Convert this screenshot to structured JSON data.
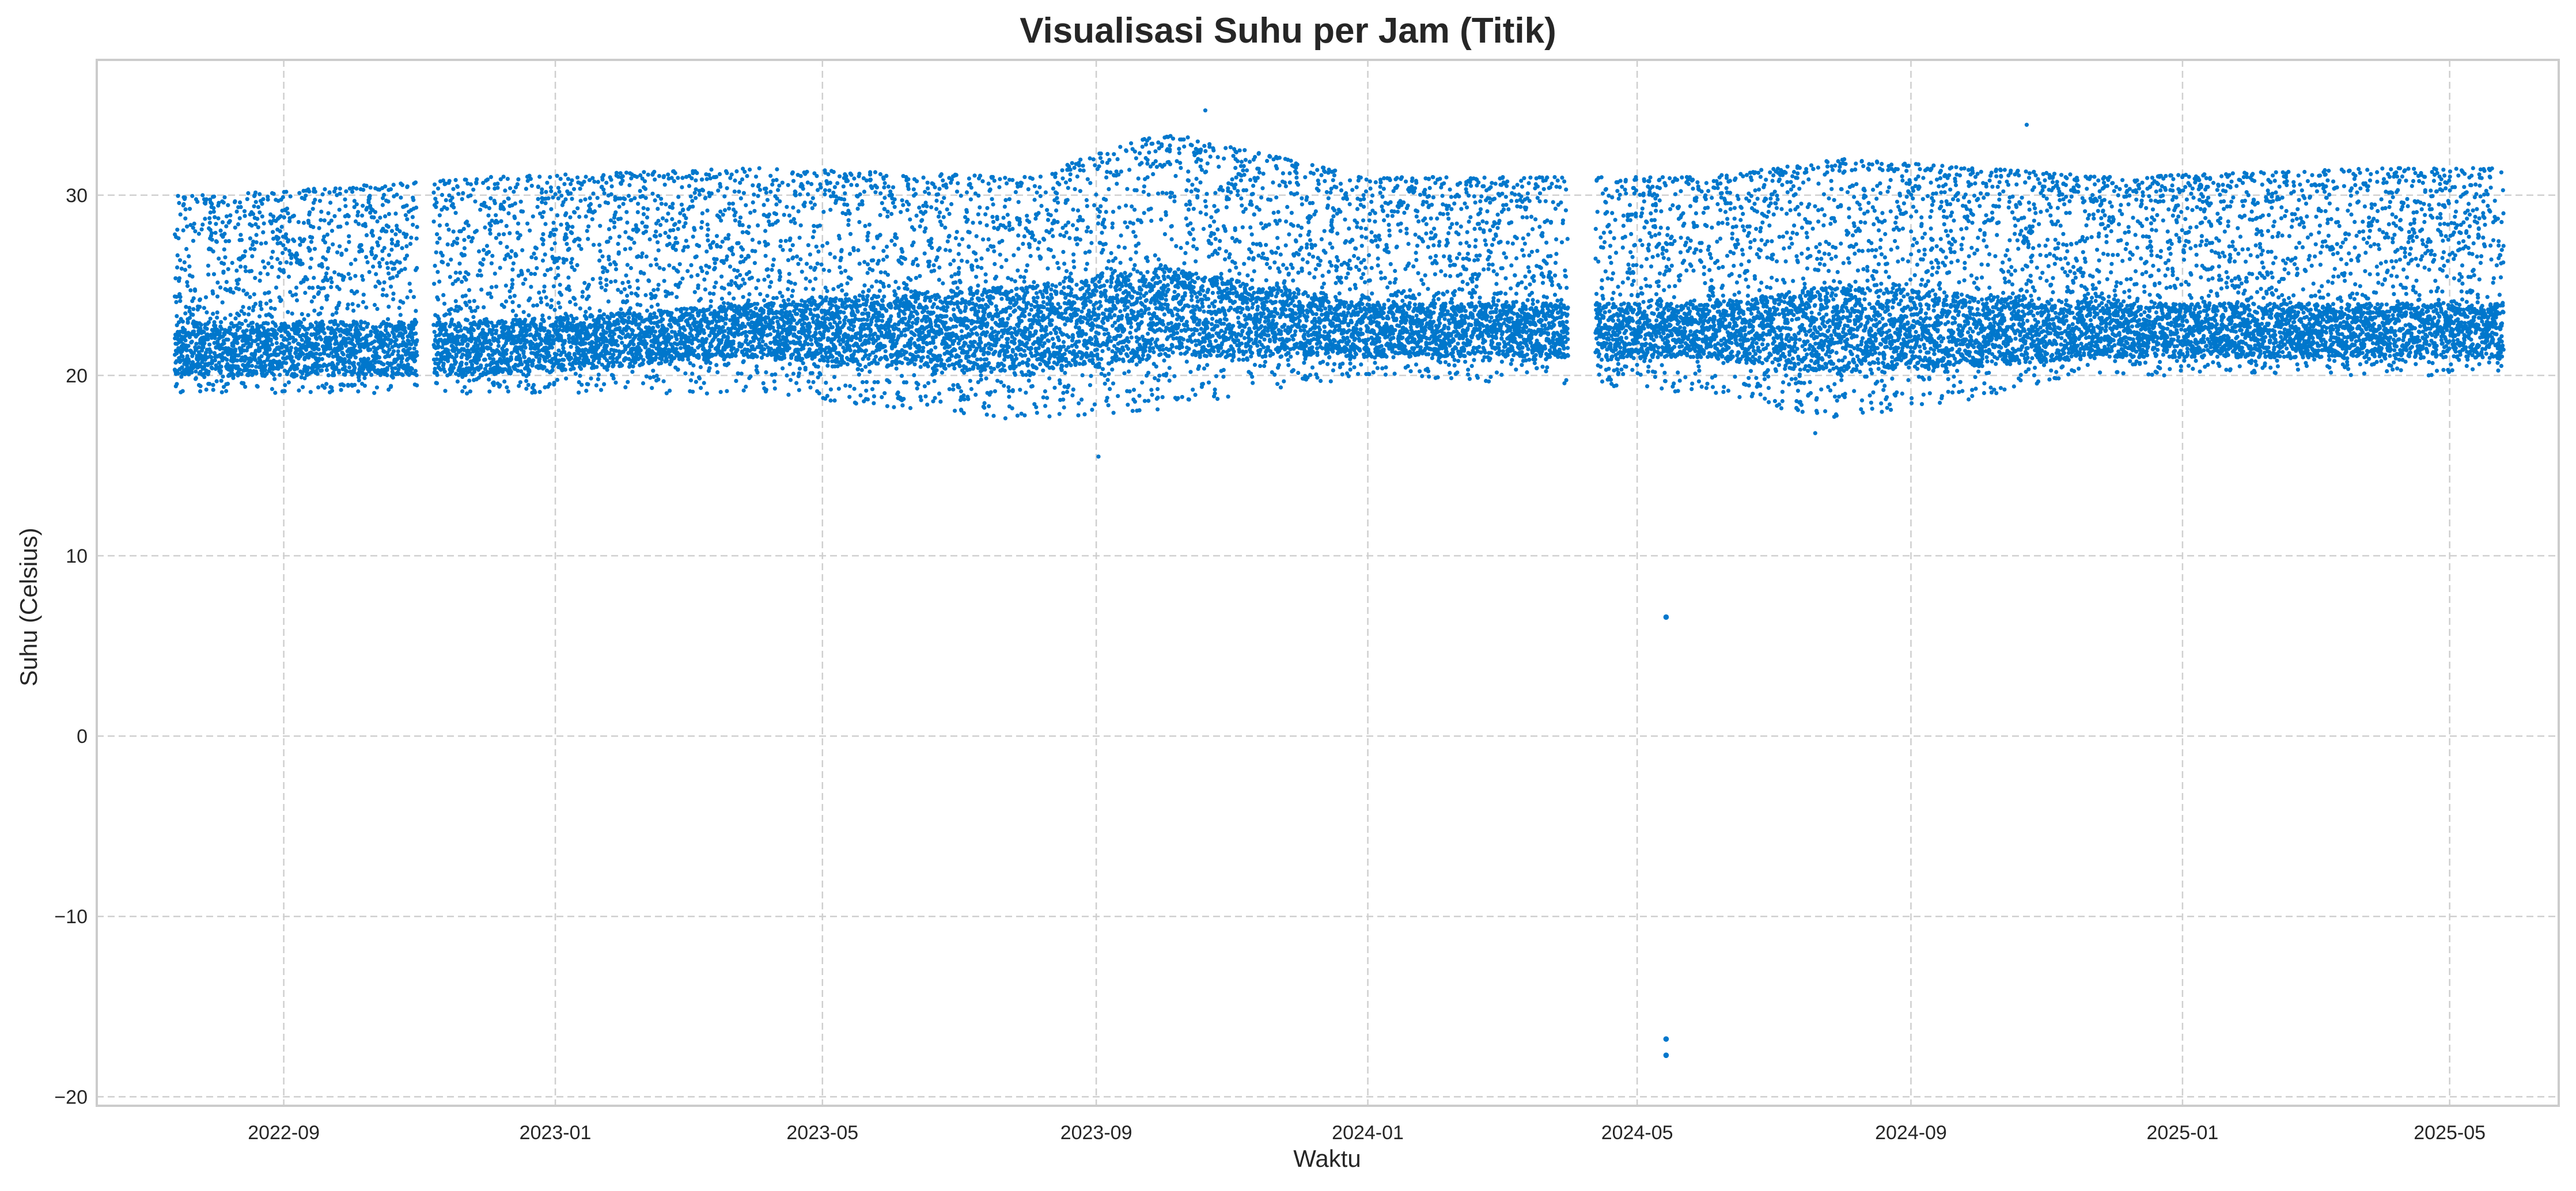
{
  "chart_data": {
    "type": "scatter",
    "title": "Visualisasi Suhu per Jam (Titik)",
    "xlabel": "Waktu",
    "ylabel": "Suhu (Celsius)",
    "x_axis": {
      "type": "date",
      "range": [
        "2022-06-09",
        "2025-06-19"
      ],
      "ticks": [
        "2022-09",
        "2023-01",
        "2023-05",
        "2023-09",
        "2024-01",
        "2024-05",
        "2024-09",
        "2025-01",
        "2025-05"
      ]
    },
    "y_axis": {
      "range": [
        -20.5,
        37.5
      ],
      "ticks": [
        30,
        20,
        10,
        0,
        -10,
        -20
      ]
    },
    "grid": true,
    "color": "#0077cc",
    "series": [
      {
        "data_start": "2022-07-14",
        "data_end": "2025-05-25",
        "sampling": "hourly",
        "typical_range": [
          17,
          34
        ],
        "band": [
          {
            "x": "2022-08-01",
            "low": 19,
            "high": 30,
            "dense_low": 20,
            "dense_high": 23
          },
          {
            "x": "2022-12-01",
            "low": 19,
            "high": 31,
            "dense_low": 20,
            "dense_high": 23
          },
          {
            "x": "2023-04-01",
            "low": 19,
            "high": 31.5,
            "dense_low": 21,
            "dense_high": 24
          },
          {
            "x": "2023-08-01",
            "low": 17.5,
            "high": 31,
            "dense_low": 20,
            "dense_high": 25
          },
          {
            "x": "2023-10-01",
            "low": 18,
            "high": 33.5,
            "dense_low": 21,
            "dense_high": 26
          },
          {
            "x": "2024-01-01",
            "low": 20,
            "high": 31,
            "dense_low": 21,
            "dense_high": 24
          },
          {
            "x": "2024-06-01",
            "low": 19,
            "high": 31,
            "dense_low": 21,
            "dense_high": 24
          },
          {
            "x": "2024-08-01",
            "low": 17.5,
            "high": 32,
            "dense_low": 20,
            "dense_high": 25
          },
          {
            "x": "2024-12-01",
            "low": 20,
            "high": 31,
            "dense_low": 21,
            "dense_high": 24
          },
          {
            "x": "2025-04-01",
            "low": 20,
            "high": 31.5,
            "dense_low": 21,
            "dense_high": 24
          }
        ],
        "gaps": [
          [
            "2022-10-31",
            "2022-11-07"
          ],
          [
            "2024-03-31",
            "2024-04-12"
          ]
        ],
        "extremes": [
          {
            "x": "2023-09-02",
            "y": 15.5
          },
          {
            "x": "2023-10-20",
            "y": 34.7
          },
          {
            "x": "2024-07-20",
            "y": 16.8
          },
          {
            "x": "2024-10-23",
            "y": 33.9
          }
        ],
        "outliers": [
          {
            "x": "2024-05-14",
            "y": 6.6
          },
          {
            "x": "2024-05-14",
            "y": -16.8
          },
          {
            "x": "2024-05-14",
            "y": -17.7
          }
        ]
      }
    ]
  }
}
